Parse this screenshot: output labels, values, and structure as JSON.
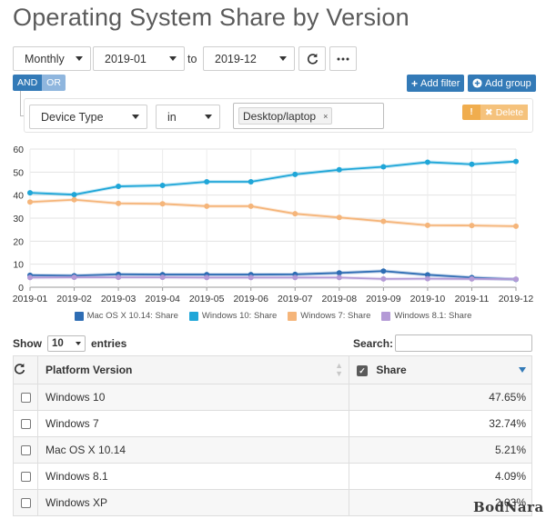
{
  "page": {
    "title": "Operating System Share by Version"
  },
  "toolbar": {
    "period": "Monthly",
    "date_from": "2019-01",
    "to_label": "to",
    "date_to": "2019-12",
    "refresh_icon": "refresh-icon",
    "more_icon": "ellipsis-icon"
  },
  "filters": {
    "and_label": "AND",
    "or_label": "OR",
    "add_filter_label": "Add filter",
    "add_group_label": "Add group",
    "field": "Device Type",
    "operator": "in",
    "value_tag": "Desktop/laptop",
    "tag_remove": "×",
    "delete_label": "Delete",
    "info_icon": "!"
  },
  "chart_data": {
    "type": "line",
    "x": [
      "2019-01",
      "2019-02",
      "2019-03",
      "2019-04",
      "2019-05",
      "2019-06",
      "2019-07",
      "2019-08",
      "2019-09",
      "2019-10",
      "2019-11",
      "2019-12"
    ],
    "ylim": [
      0,
      60
    ],
    "yticks": [
      0,
      10,
      20,
      30,
      40,
      50,
      60
    ],
    "grid": true,
    "legend_position": "bottom",
    "series": [
      {
        "name": "Mac OS X 10.14: Share",
        "color": "#2e6db4",
        "values": [
          5.2,
          5.0,
          5.6,
          5.5,
          5.5,
          5.5,
          5.6,
          6.2,
          7.0,
          5.4,
          4.2,
          3.4
        ]
      },
      {
        "name": "Windows 10: Share",
        "color": "#1fa6d8",
        "values": [
          41.0,
          40.2,
          43.8,
          44.2,
          45.8,
          45.8,
          49.0,
          51.0,
          52.3,
          54.3,
          53.4,
          54.6
        ]
      },
      {
        "name": "Windows 7: Share",
        "color": "#f5b57a",
        "values": [
          37.0,
          38.0,
          36.4,
          36.2,
          35.2,
          35.2,
          31.9,
          30.3,
          28.6,
          26.9,
          26.8,
          26.5
        ]
      },
      {
        "name": "Windows 8.1: Share",
        "color": "#b49ad6",
        "values": [
          4.2,
          4.3,
          4.3,
          4.3,
          4.2,
          4.2,
          4.2,
          4.2,
          3.6,
          3.7,
          3.6,
          3.5
        ]
      }
    ]
  },
  "table": {
    "show_label": "Show",
    "entries_value": "10",
    "entries_label": "entries",
    "search_label": "Search:",
    "search_value": "",
    "headers": {
      "platform": "Platform Version",
      "share": "Share"
    },
    "rows": [
      {
        "platform": "Windows 10",
        "share": "47.65%"
      },
      {
        "platform": "Windows 7",
        "share": "32.74%"
      },
      {
        "platform": "Mac OS X 10.14",
        "share": "5.21%"
      },
      {
        "platform": "Windows 8.1",
        "share": "4.09%"
      },
      {
        "platform": "Windows XP",
        "share": "2.03%"
      }
    ]
  },
  "watermark": "BodNara"
}
